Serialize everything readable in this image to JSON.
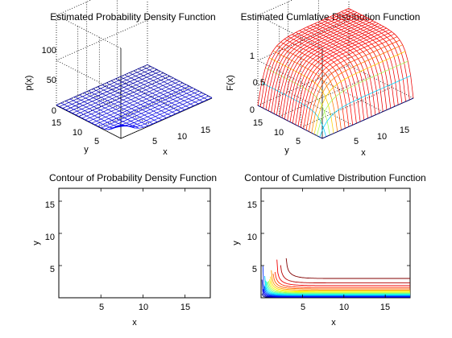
{
  "figure": {
    "background": "#ffffff"
  },
  "colormap": "jet",
  "chart_data": [
    {
      "type": "surface",
      "title": "Estimated Probability Density Function",
      "xlabel": "x",
      "ylabel": "y",
      "zlabel": "p(x)",
      "xlim": [
        0,
        18
      ],
      "ylim": [
        0,
        18
      ],
      "zlim": [
        0,
        100
      ],
      "xticks": [
        "5",
        "10",
        "15"
      ],
      "yticks": [
        "5",
        "10",
        "15"
      ],
      "zticks": [
        "0",
        "50",
        "100"
      ],
      "peak": {
        "x": 0,
        "y": 0,
        "z": 22
      },
      "surface_base_level": 1,
      "grid": true
    },
    {
      "type": "surface",
      "title": "Estimated Cumlative Distribution Function",
      "xlabel": "x",
      "ylabel": "y",
      "zlabel": "F(x)",
      "xlim": [
        0,
        18
      ],
      "ylim": [
        0,
        18
      ],
      "zlim": [
        0,
        1
      ],
      "xticks": [
        "5",
        "10",
        "15"
      ],
      "yticks": [
        "5",
        "10",
        "15"
      ],
      "zticks": [
        "0",
        "0.5",
        "1"
      ],
      "plateau_level": 1,
      "grid": true
    },
    {
      "type": "contour",
      "title": "Contour of Probability Density Function",
      "xlabel": "x",
      "ylabel": "y",
      "xlim": [
        0,
        18
      ],
      "ylim": [
        0,
        17
      ],
      "xticks": [
        "5",
        "10",
        "15"
      ],
      "yticks": [
        "5",
        "10",
        "15"
      ],
      "grid": false
    },
    {
      "type": "contour",
      "title": "Contour of Cumlative Distribution Function",
      "xlabel": "x",
      "ylabel": "y",
      "xlim": [
        0,
        18
      ],
      "ylim": [
        0,
        17
      ],
      "xticks": [
        "5",
        "10",
        "15"
      ],
      "yticks": [
        "5",
        "10",
        "15"
      ],
      "contour_levels": [
        0.05,
        0.1,
        0.15,
        0.2,
        0.25,
        0.3,
        0.35,
        0.4,
        0.45,
        0.5,
        0.55,
        0.6,
        0.65,
        0.7,
        0.75,
        0.8,
        0.85,
        0.9,
        0.95
      ],
      "grid": false
    }
  ]
}
